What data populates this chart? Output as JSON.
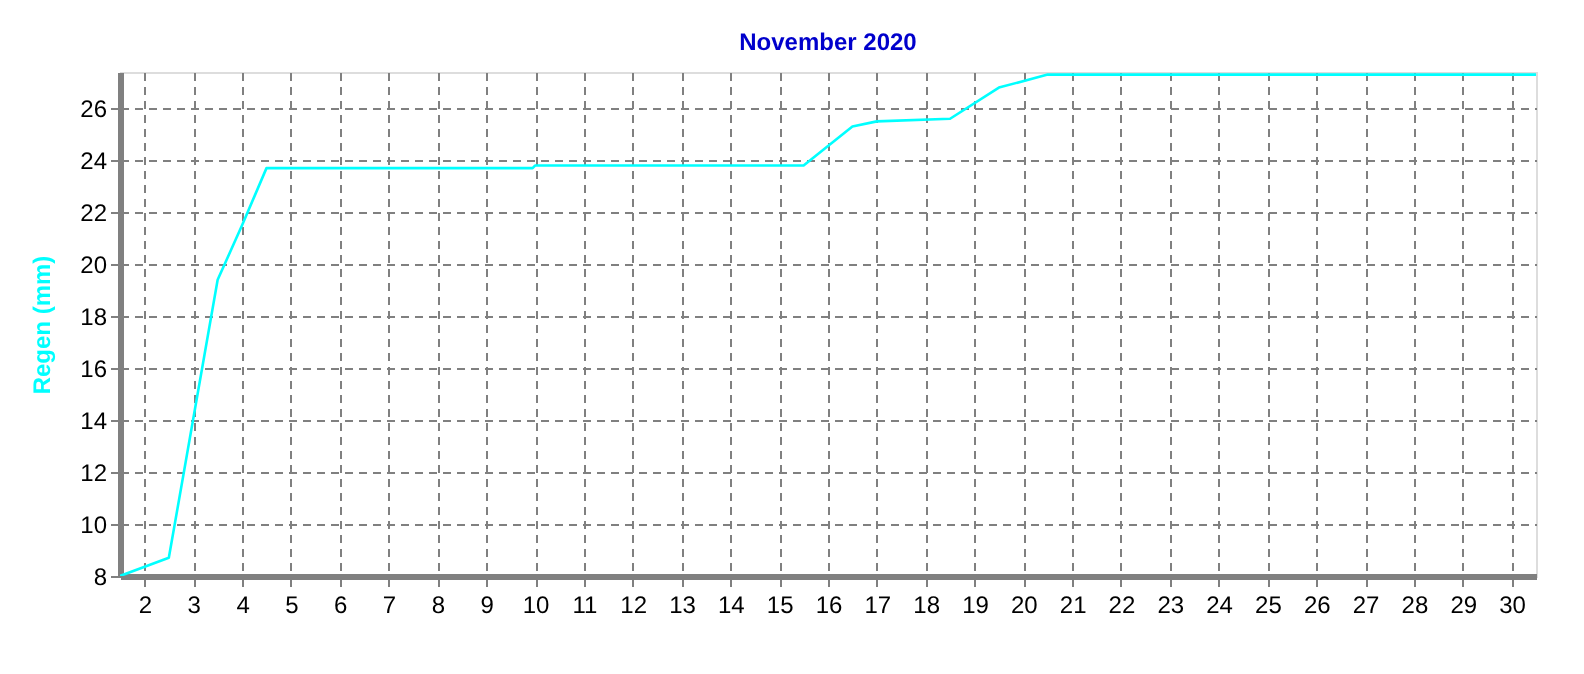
{
  "chart_data": {
    "type": "line",
    "title": "November 2020",
    "ylabel": "Regen  (mm)",
    "x": [
      1.5,
      2.5,
      3.5,
      4.0,
      4.5,
      9.95,
      10.0,
      15.5,
      16.5,
      17.0,
      18.5,
      19.5,
      20.5,
      30.5
    ],
    "series": [
      {
        "color": "#00ffff",
        "values": [
          8.0,
          8.7,
          19.4,
          21.5,
          23.7,
          23.7,
          23.8,
          23.8,
          25.3,
          25.5,
          25.6,
          26.8,
          27.3,
          27.3
        ]
      }
    ],
    "xlim": [
      1.5,
      30.5
    ],
    "xticks": [
      2,
      3,
      4,
      5,
      6,
      7,
      8,
      9,
      10,
      11,
      12,
      13,
      14,
      15,
      16,
      17,
      18,
      19,
      20,
      21,
      22,
      23,
      24,
      25,
      26,
      27,
      28,
      29,
      30
    ],
    "ylim": [
      8,
      27.4
    ],
    "yticks": [
      8,
      10,
      12,
      14,
      16,
      18,
      20,
      22,
      24,
      26
    ],
    "grid": true,
    "legend": false,
    "marker": "none",
    "line_style": "solid"
  }
}
